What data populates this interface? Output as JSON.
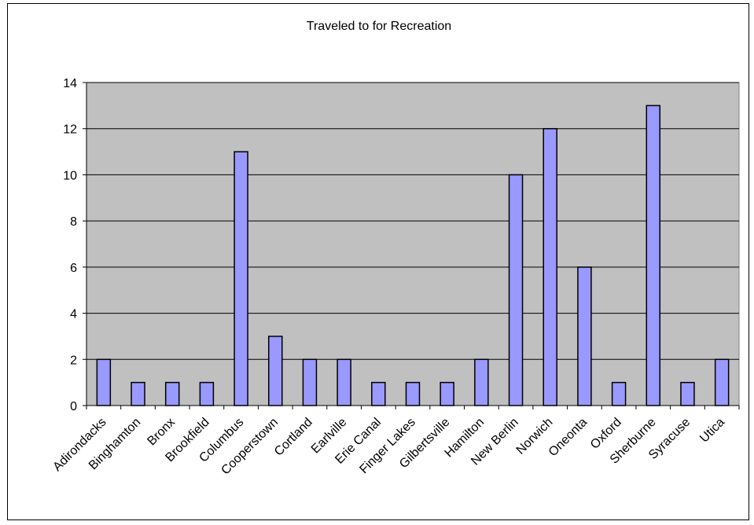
{
  "chart_data": {
    "type": "bar",
    "title": "Traveled to for Recreation",
    "xlabel": "",
    "ylabel": "",
    "ylim": [
      0,
      14
    ],
    "yticks": [
      0,
      2,
      4,
      6,
      8,
      10,
      12,
      14
    ],
    "grid": true,
    "legend": "none",
    "categories": [
      "Adirondacks",
      "Binghamton",
      "Bronx",
      "Brookfield",
      "Columbus",
      "Cooperstown",
      "Cortland",
      "Earlville",
      "Erie Canal",
      "Finger Lakes",
      "Gilbertsville",
      "Hamilton",
      "New Berlin",
      "Norwich",
      "Oneonta",
      "Oxford",
      "Sherburne",
      "Syracuse",
      "Utica"
    ],
    "values": [
      2,
      1,
      1,
      1,
      11,
      3,
      2,
      2,
      1,
      1,
      1,
      2,
      10,
      12,
      6,
      1,
      13,
      1,
      2
    ],
    "colors": {
      "bar_fill": "#9999ff",
      "bar_stroke": "#000000",
      "plot_background": "#c0c0c0",
      "gridline": "#000000"
    }
  }
}
